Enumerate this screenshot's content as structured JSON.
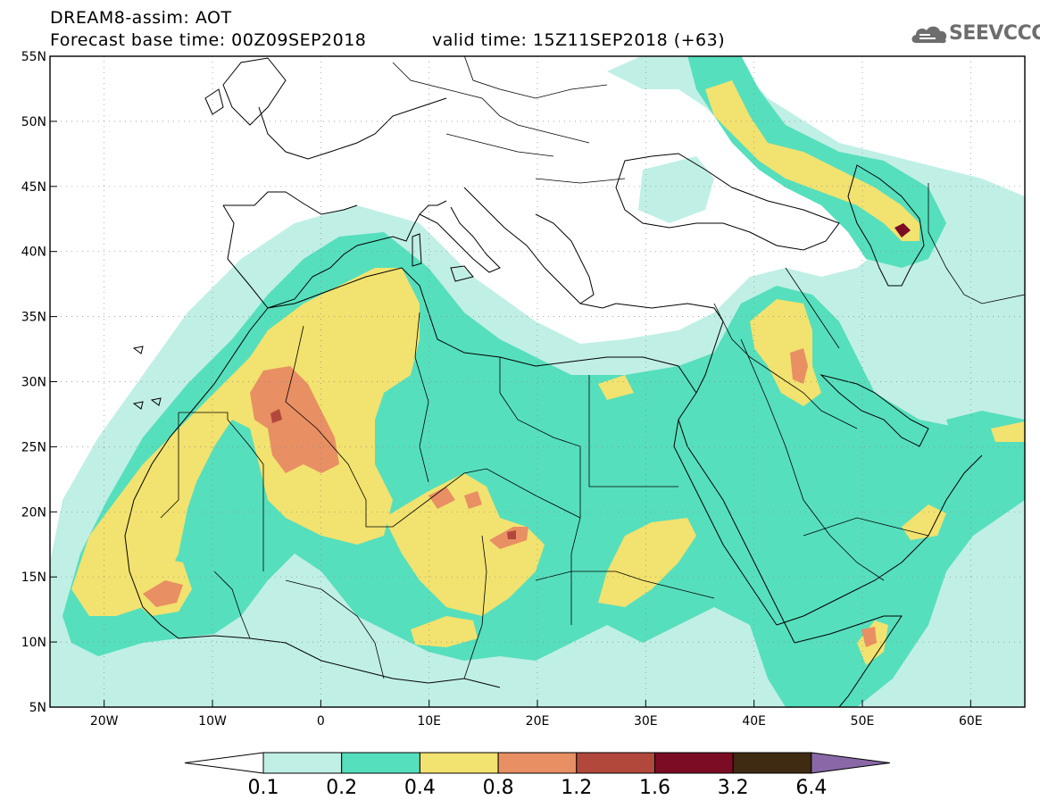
{
  "title": {
    "line1": "DREAM8-assim: AOT",
    "line2": "Forecast base time: 00Z09SEP2018",
    "valid": "valid time: 15Z11SEP2018 (+63)"
  },
  "logo": {
    "text": "SEEVCCC",
    "icon": "cloud-icon"
  },
  "map": {
    "lon_range": [
      -25,
      65
    ],
    "lat_range": [
      5,
      55
    ],
    "x_ticks": [
      "20W",
      "10W",
      "0",
      "10E",
      "20E",
      "30E",
      "40E",
      "50E",
      "60E"
    ],
    "y_ticks": [
      "55N",
      "50N",
      "45N",
      "40N",
      "35N",
      "30N",
      "25N",
      "20N",
      "15N",
      "10N",
      "5N"
    ],
    "grid": true
  },
  "colorbar": {
    "labels": [
      "0.1",
      "0.2",
      "0.4",
      "0.8",
      "1.2",
      "1.6",
      "3.2",
      "6.4"
    ],
    "colors": [
      "#ffffff",
      "#c0efe6",
      "#56dfbc",
      "#f2e26f",
      "#e88f64",
      "#b2473c",
      "#7c0b24",
      "#3f2a12",
      "#8a68a8"
    ]
  },
  "levels": {
    "l1": "#c0efe6",
    "l2": "#56dfbc",
    "l3": "#f2e26f",
    "l4": "#e88f64",
    "l5": "#b2473c",
    "l6": "#7c0b24"
  }
}
